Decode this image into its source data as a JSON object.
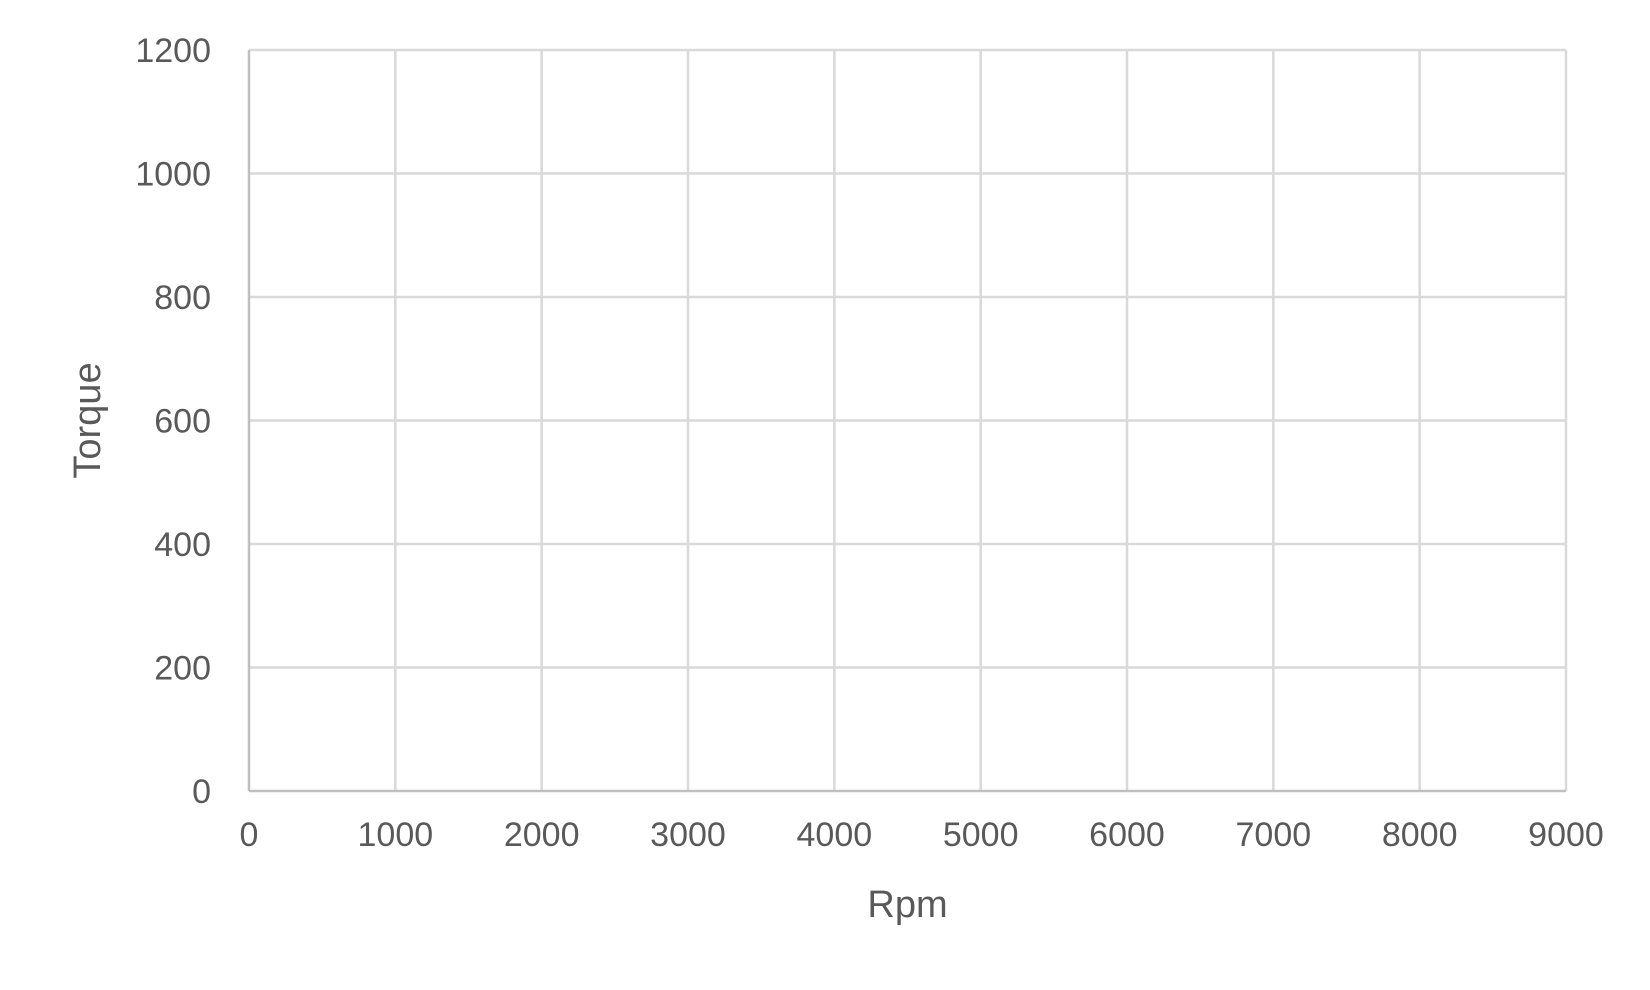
{
  "chart_data": {
    "type": "scatter",
    "title": "",
    "xlabel": "Rpm",
    "ylabel": "Torque",
    "xlim": [
      0,
      9000
    ],
    "ylim": [
      0,
      1200
    ],
    "x_ticks": [
      0,
      1000,
      2000,
      3000,
      4000,
      5000,
      6000,
      7000,
      8000,
      9000
    ],
    "y_ticks": [
      0,
      200,
      400,
      600,
      800,
      1000,
      1200
    ],
    "x_tick_labels": [
      "0",
      "1000",
      "2000",
      "3000",
      "4000",
      "5000",
      "6000",
      "7000",
      "8000",
      "9000"
    ],
    "y_tick_labels": [
      "0",
      "200",
      "400",
      "600",
      "800",
      "1000",
      "1200"
    ],
    "grid": true,
    "series": [],
    "colors": {
      "grid": "#d9d9d9",
      "axis": "#bfbfbf",
      "text": "#595959"
    }
  }
}
